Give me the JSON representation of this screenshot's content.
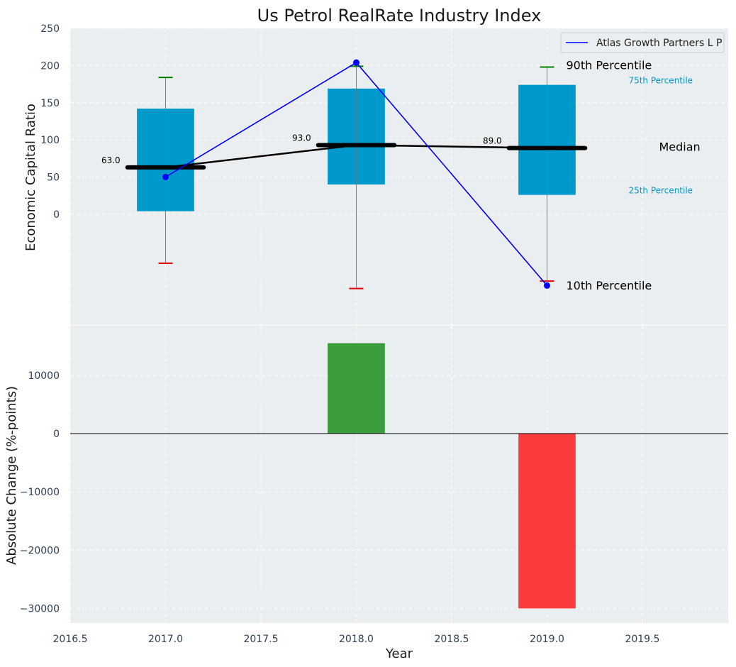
{
  "chart_data": [
    {
      "type": "box-line",
      "title": "Us Petrol RealRate Industry Index",
      "ylabel": "Economic Capital Ratio",
      "ylim": [
        -150,
        250
      ],
      "yticks": [
        0,
        50,
        100,
        150,
        200,
        250
      ],
      "xlim": [
        2016.5,
        2019.95
      ],
      "grid": true,
      "boxes": [
        {
          "x": 2017.0,
          "p10": -66,
          "p25": 4,
          "median": 63.0,
          "p75": 142,
          "p90": 184
        },
        {
          "x": 2018.0,
          "p10": -100,
          "p25": 40,
          "median": 93.0,
          "p75": 169,
          "p90": 199
        },
        {
          "x": 2019.0,
          "p10": -90,
          "p25": 26,
          "median": 89.0,
          "p75": 174,
          "p90": 198
        }
      ],
      "median_labels": [
        "63.0",
        "93.0",
        "89.0"
      ],
      "series": [
        {
          "name": "Atlas Growth Partners L P",
          "color": "#0000ff",
          "x": [
            2017.0,
            2018.0,
            2019.0
          ],
          "y": [
            50,
            204,
            -96
          ]
        }
      ],
      "legend": "top-right",
      "annotations": {
        "p90": "90th Percentile",
        "p75": "75th Percentile",
        "median": "Median",
        "p25": "25th Percentile",
        "p10": "10th Percentile"
      },
      "colors": {
        "box": "#0099cc",
        "median": "#000000",
        "whisker_high": "#008000",
        "whisker_low": "#e00000",
        "background": "#eaeef0"
      }
    },
    {
      "type": "bar",
      "ylabel": "Absolute Change (%-points)",
      "xlabel": "Year",
      "x": [
        2018.0,
        2019.0
      ],
      "values": [
        15500,
        -30000
      ],
      "colors": [
        "#3a9c3a",
        "#fc3c3c"
      ],
      "ylim": [
        -32500,
        18500
      ],
      "yticks": [
        -30000,
        -20000,
        -10000,
        0,
        10000
      ],
      "ytick_labels": [
        "−30000",
        "−20000",
        "−10000",
        "0",
        "10000"
      ],
      "xticks": [
        2016.5,
        2017.0,
        2017.5,
        2018.0,
        2018.5,
        2019.0,
        2019.5
      ],
      "xtick_labels": [
        "2016.5",
        "2017.0",
        "2017.5",
        "2018.0",
        "2018.5",
        "2019.0",
        "2019.5"
      ],
      "grid": true
    }
  ]
}
